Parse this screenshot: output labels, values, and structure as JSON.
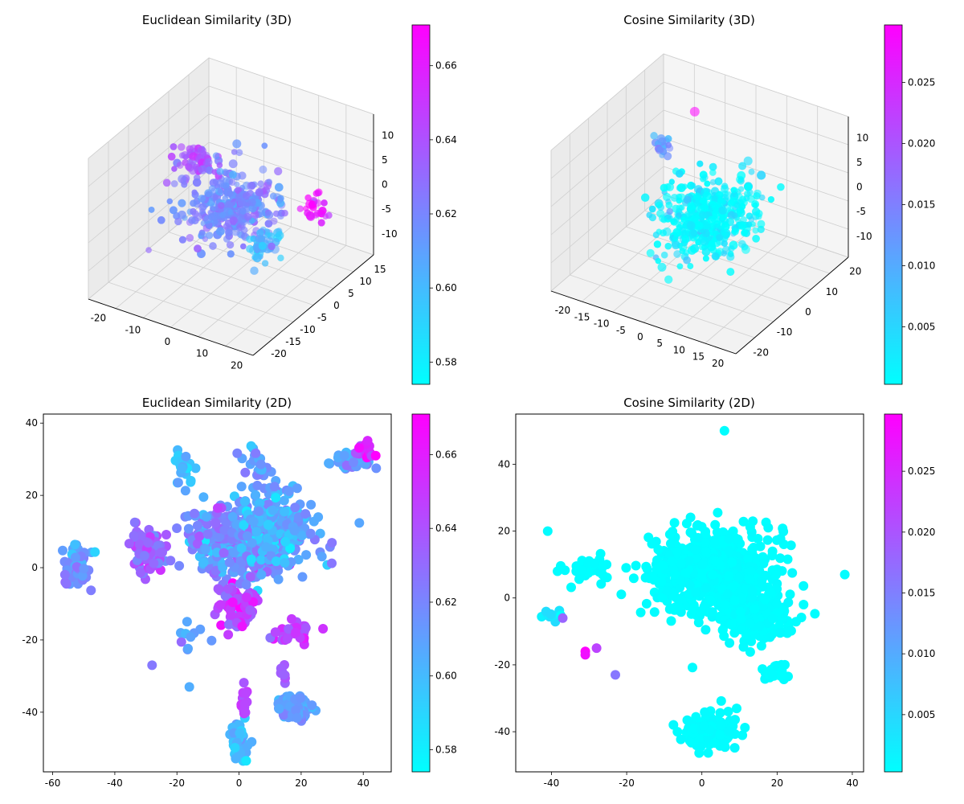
{
  "figure": {
    "panels": 4,
    "layout": "2x2"
  },
  "chart_data": [
    {
      "id": "euc3d",
      "type": "scatter3d",
      "title": "Euclidean Similarity (3D)",
      "x_ticks": [
        "-20",
        "-10",
        "0",
        "10",
        "20"
      ],
      "y_ticks": [
        "-20",
        "-15",
        "-10",
        "-5",
        "0",
        "5",
        "10",
        "15"
      ],
      "z_ticks": [
        "10",
        "5",
        "0",
        "-5",
        "-10"
      ],
      "colorbar": {
        "range": [
          0.574,
          0.671
        ],
        "ticks": [
          "0.58",
          "0.60",
          "0.62",
          "0.64",
          "0.66"
        ],
        "tick_values": [
          0.58,
          0.6,
          0.62,
          0.64,
          0.66
        ]
      },
      "colormap": {
        "low": "#00ffff",
        "high": "#ff00ff"
      },
      "clusters": [
        {
          "x": 0,
          "y": 0,
          "z": 0,
          "spread": [
            10,
            8,
            4
          ],
          "n": 320,
          "c": 0.62
        },
        {
          "x": -15,
          "y": 5,
          "z": 3,
          "spread": [
            4,
            3,
            2
          ],
          "n": 60,
          "c": 0.64
        },
        {
          "x": 15,
          "y": -5,
          "z": -2,
          "spread": [
            4,
            3,
            2
          ],
          "n": 50,
          "c": 0.6
        },
        {
          "x": 18,
          "y": 8,
          "z": 0,
          "spread": [
            3,
            2,
            2
          ],
          "n": 25,
          "c": 0.66
        }
      ]
    },
    {
      "id": "cos3d",
      "type": "scatter3d",
      "title": "Cosine Similarity (3D)",
      "x_ticks": [
        "-20",
        "-15",
        "-10",
        "-5",
        "0",
        "5",
        "10",
        "15",
        "20"
      ],
      "y_ticks": [
        "-20",
        "-10",
        "0",
        "10",
        "20"
      ],
      "z_ticks": [
        "10",
        "5",
        "0",
        "-5",
        "-10"
      ],
      "colorbar": {
        "range": [
          0.0003,
          0.0297
        ],
        "ticks": [
          "0.005",
          "0.010",
          "0.015",
          "0.020",
          "0.025"
        ],
        "tick_values": [
          0.005,
          0.01,
          0.015,
          0.02,
          0.025
        ]
      },
      "colormap": {
        "low": "#00ffff",
        "high": "#ff00ff"
      },
      "clusters": [
        {
          "x": 2,
          "y": 0,
          "z": -2,
          "spread": [
            9,
            9,
            4
          ],
          "n": 420,
          "c": 0.001
        },
        {
          "x": -18,
          "y": 10,
          "z": 2,
          "spread": [
            2,
            2,
            1.5
          ],
          "n": 18,
          "c": 0.012
        }
      ],
      "highlights": [
        {
          "x": -12,
          "y": 14,
          "z": 8,
          "c": 0.0297
        }
      ]
    },
    {
      "id": "euc2d",
      "type": "scatter",
      "title": "Euclidean Similarity (2D)",
      "x_ticks": [
        -60,
        -40,
        -20,
        0,
        20,
        40
      ],
      "y_ticks": [
        40,
        20,
        0,
        -20,
        -40
      ],
      "xlim": [
        -63,
        49
      ],
      "ylim": [
        -56.5,
        42.5
      ],
      "colorbar": {
        "range": [
          0.574,
          0.671
        ],
        "ticks": [
          "0.58",
          "0.60",
          "0.62",
          "0.64",
          "0.66"
        ],
        "tick_values": [
          0.58,
          0.6,
          0.62,
          0.64,
          0.66
        ]
      },
      "colormap": {
        "low": "#00ffff",
        "high": "#ff00ff"
      },
      "clusters": [
        {
          "x": 2,
          "y": 8,
          "sx": 16,
          "sy": 9,
          "n": 420,
          "c": 0.615,
          "cs": 0.012
        },
        {
          "x": 12,
          "y": 12,
          "sx": 9,
          "sy": 9,
          "n": 160,
          "c": 0.605,
          "cs": 0.01
        },
        {
          "x": -30,
          "y": 4,
          "sx": 4,
          "sy": 6,
          "n": 70,
          "c": 0.63,
          "cs": 0.01
        },
        {
          "x": -52,
          "y": 1,
          "sx": 4,
          "sy": 5,
          "n": 50,
          "c": 0.615,
          "cs": 0.008
        },
        {
          "x": 0,
          "y": -10,
          "sx": 5,
          "sy": 6,
          "n": 100,
          "c": 0.645,
          "cs": 0.012
        },
        {
          "x": 18,
          "y": -39,
          "sx": 4,
          "sy": 2.5,
          "n": 100,
          "c": 0.61,
          "cs": 0.006
        },
        {
          "x": 0,
          "y": -48,
          "sx": 2.5,
          "sy": 4,
          "n": 55,
          "c": 0.6,
          "cs": 0.006
        },
        {
          "x": 2,
          "y": -37,
          "sx": 1,
          "sy": 3,
          "n": 15,
          "c": 0.645,
          "cs": 0.005
        },
        {
          "x": 36,
          "y": 30,
          "sx": 5,
          "sy": 2,
          "n": 50,
          "c": 0.61,
          "cs": 0.008
        },
        {
          "x": 40,
          "y": 33,
          "sx": 2,
          "sy": 2,
          "n": 18,
          "c": 0.655,
          "cs": 0.01
        },
        {
          "x": 18,
          "y": -18,
          "sx": 5,
          "sy": 2.5,
          "n": 30,
          "c": 0.645,
          "cs": 0.008
        },
        {
          "x": 14,
          "y": -30,
          "sx": 1,
          "sy": 3,
          "n": 8,
          "c": 0.635,
          "cs": 0.005
        },
        {
          "x": -18,
          "y": 28,
          "sx": 3,
          "sy": 4,
          "n": 25,
          "c": 0.6,
          "cs": 0.008
        },
        {
          "x": 5,
          "y": 28,
          "sx": 4,
          "sy": 4,
          "n": 20,
          "c": 0.61,
          "cs": 0.008
        },
        {
          "x": -15,
          "y": -20,
          "sx": 4,
          "sy": 3,
          "n": 10,
          "c": 0.61,
          "cs": 0.008
        }
      ],
      "points": [
        {
          "x": -28,
          "y": -27,
          "c": 0.625
        },
        {
          "x": -16,
          "y": -33,
          "c": 0.605
        },
        {
          "x": 44,
          "y": 31,
          "c": 0.671
        }
      ]
    },
    {
      "id": "cos2d",
      "type": "scatter",
      "title": "Cosine Similarity (2D)",
      "x_ticks": [
        -40,
        -20,
        0,
        20,
        40
      ],
      "y_ticks": [
        40,
        20,
        0,
        -20,
        -40
      ],
      "xlim": [
        -49.5,
        43
      ],
      "ylim": [
        -52,
        55
      ],
      "colorbar": {
        "range": [
          0.0003,
          0.0297
        ],
        "ticks": [
          "0.005",
          "0.010",
          "0.015",
          "0.020",
          "0.025"
        ],
        "tick_values": [
          0.005,
          0.01,
          0.015,
          0.02,
          0.025
        ]
      },
      "colormap": {
        "low": "#00ffff",
        "high": "#ff00ff"
      },
      "clusters": [
        {
          "x": 2,
          "y": 8,
          "sx": 13,
          "sy": 10,
          "n": 650,
          "c": 0.0005,
          "cs": 0.0002
        },
        {
          "x": 15,
          "y": -5,
          "sx": 8,
          "sy": 7,
          "n": 200,
          "c": 0.0005,
          "cs": 0.0002
        },
        {
          "x": 2,
          "y": -40,
          "sx": 6,
          "sy": 4,
          "n": 170,
          "c": 0.0005,
          "cs": 0.0002
        },
        {
          "x": -30,
          "y": 8,
          "sx": 5,
          "sy": 3,
          "n": 40,
          "c": 0.0005,
          "cs": 0.0002
        },
        {
          "x": 20,
          "y": -22,
          "sx": 3,
          "sy": 2,
          "n": 25,
          "c": 0.0005,
          "cs": 0.0002
        },
        {
          "x": -40,
          "y": -5,
          "sx": 2,
          "sy": 2,
          "n": 12,
          "c": 0.003,
          "cs": 0.002
        }
      ],
      "points": [
        {
          "x": 6,
          "y": 50,
          "c": 0.0004
        },
        {
          "x": -31,
          "y": -16,
          "c": 0.0297
        },
        {
          "x": -31,
          "y": -17,
          "c": 0.028
        },
        {
          "x": -28,
          "y": -15,
          "c": 0.022
        },
        {
          "x": -23,
          "y": -23,
          "c": 0.016
        },
        {
          "x": -37,
          "y": -6,
          "c": 0.018
        },
        {
          "x": -41,
          "y": 20,
          "c": 0.0006
        },
        {
          "x": 38,
          "y": 7,
          "c": 0.0006
        }
      ]
    }
  ]
}
